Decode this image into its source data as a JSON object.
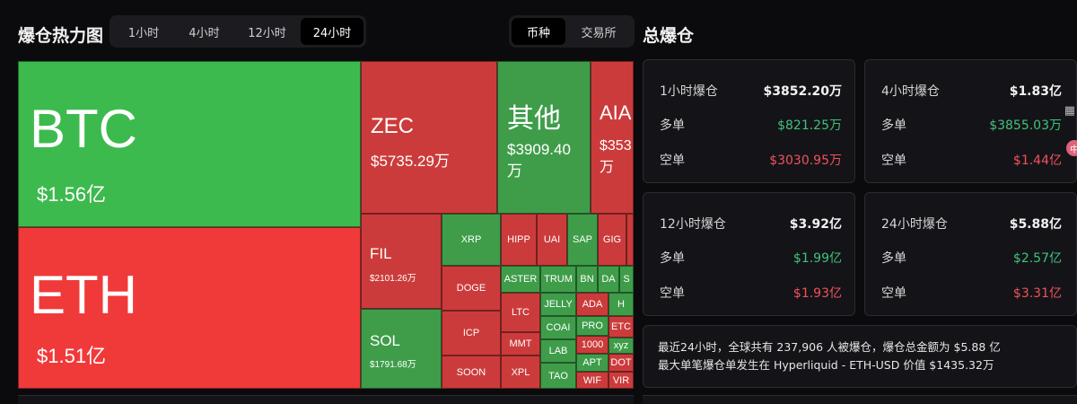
{
  "heatmap": {
    "title": "爆仓热力图",
    "time_tabs": [
      {
        "label": "1小时",
        "active": false
      },
      {
        "label": "4小时",
        "active": false
      },
      {
        "label": "12小时",
        "active": false
      },
      {
        "label": "24小时",
        "active": true
      }
    ],
    "view_tabs": [
      {
        "label": "币种",
        "active": true
      },
      {
        "label": "交易所",
        "active": false
      }
    ],
    "tiles": {
      "btc": {
        "name": "BTC",
        "value": "$1.56亿"
      },
      "eth": {
        "name": "ETH",
        "value": "$1.51亿"
      },
      "zec": {
        "name": "ZEC",
        "value": "$5735.29万"
      },
      "other": {
        "name": "其他",
        "value": "$3909.40\n万"
      },
      "aia": {
        "name": "AIA",
        "value": "$353\n万"
      },
      "fil": {
        "name": "FIL",
        "value": "$2101.26万"
      },
      "sol": {
        "name": "SOL",
        "value": "$1791.68万"
      },
      "small": [
        "XRP",
        "DOGE",
        "ICP",
        "SOON",
        "HIPP",
        "UAI",
        "SAP",
        "GIG",
        "ASTER",
        "TRUM",
        "BN",
        "DA",
        "S",
        "LTC",
        "JELLY",
        "ADA",
        "H",
        "MMT",
        "COAI",
        "PRO",
        "ETC",
        "LAB",
        "1000",
        "xyz",
        "XPL",
        "APT",
        "DOT",
        "TAO",
        "WIF",
        "VIR"
      ]
    }
  },
  "totals": {
    "title": "总爆仓",
    "long_label": "多单",
    "short_label": "空单",
    "cards": [
      {
        "period": "1小时爆仓",
        "total": "$3852.20万",
        "long": "$821.25万",
        "short": "$3030.95万"
      },
      {
        "period": "4小时爆仓",
        "total": "$1.83亿",
        "long": "$3855.03万",
        "short": "$1.44亿"
      },
      {
        "period": "12小时爆仓",
        "total": "$3.92亿",
        "long": "$1.99亿",
        "short": "$1.93亿"
      },
      {
        "period": "24小时爆仓",
        "total": "$5.88亿",
        "long": "$2.57亿",
        "short": "$3.31亿"
      }
    ],
    "summary_line1": "最近24小时，全球共有 237,906 人被爆仓，爆仓总金额为 $5.88 亿",
    "summary_line2": "最大单笔爆仓单发生在 Hyperliquid - ETH-USD 价值 $1435.32万"
  },
  "side": {
    "grid_icon": "grid-icon",
    "badge": "中"
  },
  "colors": {
    "green": "#3dba4e",
    "red": "#f03a3a",
    "long_text": "#3fc27a",
    "short_text": "#f0525a"
  }
}
